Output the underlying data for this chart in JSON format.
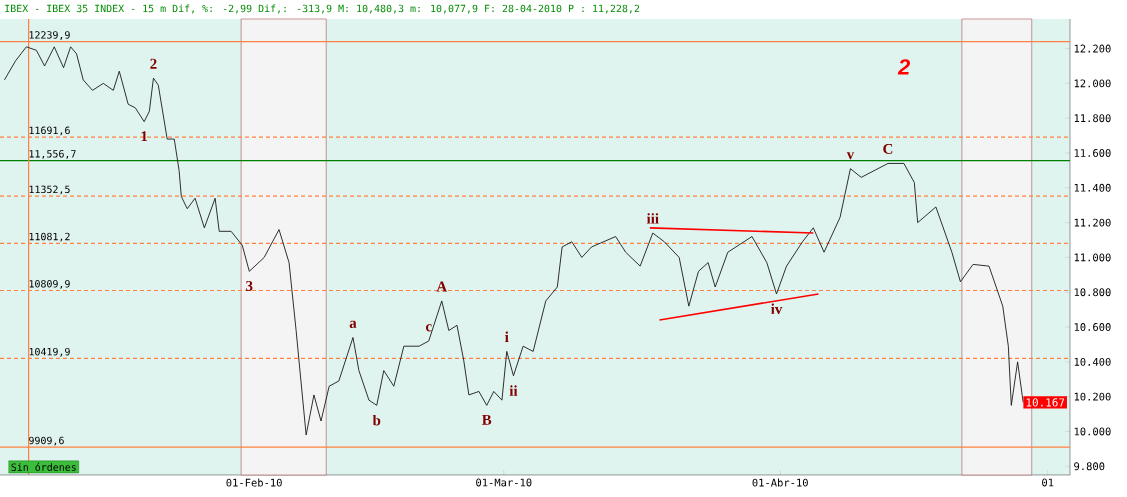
{
  "chart_data": {
    "type": "line",
    "title": "IBEX - IBEX 35 INDEX -  15 m Dif, %: -2,99 Dif,: -313,9 M: 10,480,3 m: 10,077,9 F: 28-04-2010 P : 11,228,2",
    "xlim": [
      "2010-01-03T12:00",
      "2010-05-03T12:00"
    ],
    "xticks": [
      {
        "value": "2010-02-01",
        "label": "01-Feb-10"
      },
      {
        "value": "2010-03-01",
        "label": "01-Mar-10"
      },
      {
        "value": "2010-04-01",
        "label": "01-Abr-10"
      },
      {
        "value": "2010-05-01",
        "label": "01"
      }
    ],
    "ylim": [
      9750,
      12370
    ],
    "yticks": [
      {
        "value": 9800,
        "label": "9.800"
      },
      {
        "value": 10000,
        "label": "10.000"
      },
      {
        "value": 10200,
        "label": "10.200"
      },
      {
        "value": 10400,
        "label": "10.400"
      },
      {
        "value": 10600,
        "label": "10.600"
      },
      {
        "value": 10800,
        "label": "10.800"
      },
      {
        "value": 11000,
        "label": "11.000"
      },
      {
        "value": 11200,
        "label": "11.200"
      },
      {
        "value": 11400,
        "label": "11.400"
      },
      {
        "value": 11600,
        "label": "11.600"
      },
      {
        "value": 11800,
        "label": "11.800"
      },
      {
        "value": 12000,
        "label": "12.000"
      },
      {
        "value": 12200,
        "label": "12.200"
      }
    ],
    "series": [
      {
        "color": "#1a1a1a",
        "x": [
          "2010-01-04T00:00",
          "2010-01-05T06:00",
          "2010-01-06T11:00",
          "2010-01-07T14:00",
          "2010-01-08T12:00",
          "2010-01-09T14:00",
          "2010-01-10T15:00",
          "2010-01-11T10:00",
          "2010-01-12T02:00",
          "2010-01-12T20:00",
          "2010-01-13T21:00",
          "2010-01-15T02:00",
          "2010-01-16T05:00",
          "2010-01-16T21:00",
          "2010-01-17T21:00",
          "2010-01-18T16:00",
          "2010-01-19T16:00",
          "2010-01-20T06:00",
          "2010-01-20T17:00",
          "2010-01-21T06:00",
          "2010-01-22T06:00",
          "2010-01-23T01:00",
          "2010-01-23T14:00",
          "2010-01-23T20:00",
          "2010-01-24T12:00",
          "2010-01-25T09:00",
          "2010-01-26T10:00",
          "2010-01-27T15:00",
          "2010-01-28T02:00",
          "2010-01-29T10:00",
          "2010-01-30T16:00",
          "2010-01-31T11:00",
          "2010-02-02T03:00",
          "2010-02-03T19:00",
          "2010-02-04T22:00",
          "2010-02-05T17:00",
          "2010-02-06T06:00",
          "2010-02-06T20:00",
          "2010-02-07T17:00",
          "2010-02-08T12:00",
          "2010-02-09T10:00",
          "2010-02-10T12:00",
          "2010-02-12T02:00",
          "2010-02-12T18:00",
          "2010-02-13T21:00",
          "2010-02-14T18:00",
          "2010-02-15T13:00",
          "2010-02-16T16:00",
          "2010-02-17T19:00",
          "2010-02-19T12:00",
          "2010-02-20T14:00",
          "2010-02-22T01:00",
          "2010-02-22T20:00",
          "2010-02-23T18:00",
          "2010-02-24T12:00",
          "2010-02-25T02:00",
          "2010-02-26T05:00",
          "2010-02-27T02:00",
          "2010-02-27T21:00",
          "2010-02-28T19:00",
          "2010-03-01T08:00",
          "2010-03-02T02:00",
          "2010-03-03T04:00",
          "2010-03-04T07:00",
          "2010-03-05T17:00",
          "2010-03-07T00:00",
          "2010-03-07T13:00",
          "2010-03-08T15:00",
          "2010-03-09T18:00",
          "2010-03-10T20:00",
          "2010-03-13T13:00",
          "2010-03-14T16:00",
          "2010-03-16T07:00",
          "2010-03-17T17:00",
          "2010-03-19T00:00",
          "2010-03-20T16:00",
          "2010-03-21T18:00",
          "2010-03-22T20:00",
          "2010-03-23T22:00",
          "2010-03-24T17:00",
          "2010-03-26T03:00",
          "2010-03-28T20:00",
          "2010-03-30T12:00",
          "2010-03-31T14:00",
          "2010-04-01T17:00",
          "2010-04-03T12:00",
          "2010-04-04T17:00",
          "2010-04-05T22:00",
          "2010-04-07T17:00",
          "2010-04-08T21:00",
          "2010-04-10T02:00",
          "2010-04-13T02:00",
          "2010-04-14T21:00",
          "2010-04-16T01:00",
          "2010-04-16T10:00",
          "2010-04-18T11:00",
          "2010-04-20T06:00",
          "2010-04-21T05:00",
          "2010-04-22T15:00",
          "2010-04-24T10:00",
          "2010-04-25T23:00",
          "2010-04-26T14:00",
          "2010-04-26T22:00",
          "2010-04-27T15:00",
          "2010-04-28T06:00"
        ],
        "values": [
          12020,
          12130,
          12210,
          12190,
          12100,
          12210,
          12090,
          12210,
          12170,
          12020,
          11960,
          12000,
          11960,
          12070,
          11880,
          11860,
          11780,
          11840,
          12030,
          11990,
          11680,
          11680,
          11500,
          11350,
          11280,
          11340,
          11170,
          11340,
          11150,
          11150,
          11070,
          10920,
          11000,
          11160,
          10970,
          10580,
          10290,
          9980,
          10210,
          10060,
          10260,
          10290,
          10540,
          10350,
          10180,
          10150,
          10350,
          10260,
          10490,
          10490,
          10520,
          10750,
          10580,
          10610,
          10410,
          10210,
          10230,
          10150,
          10230,
          10180,
          10460,
          10320,
          10490,
          10460,
          10750,
          10830,
          11060,
          11090,
          11000,
          11060,
          11120,
          11030,
          10950,
          11140,
          11090,
          11000,
          10720,
          10920,
          10970,
          10830,
          11030,
          11120,
          10970,
          10790,
          10950,
          11090,
          11170,
          11030,
          11230,
          11510,
          11460,
          11540,
          11540,
          11430,
          11200,
          11290,
          11030,
          10860,
          10960,
          10950,
          10720,
          10490,
          10150,
          10400,
          10167
        ]
      },
      {
        "color": "#ff0000",
        "x": [
          "2010-03-17T09:00",
          "2010-04-04T17:00"
        ],
        "values": [
          11170,
          11140
        ]
      },
      {
        "color": "#ff0000",
        "x": [
          "2010-03-18T11:00",
          "2010-04-05T07:00"
        ],
        "values": [
          10640,
          10790
        ]
      }
    ],
    "ref_lines": [
      {
        "axis": "y",
        "value": 12239.9,
        "label": "12239,9",
        "color": "#ff8040",
        "line_style": "solid"
      },
      {
        "axis": "y",
        "value": 11691.6,
        "label": "11691,6",
        "color": "#ff8040",
        "line_style": "dashed"
      },
      {
        "axis": "y",
        "value": 11556.7,
        "label": "11,556,7",
        "color": "#008000",
        "line_style": "solid"
      },
      {
        "axis": "y",
        "value": 11352.5,
        "label": "11352,5",
        "color": "#ff8040",
        "line_style": "dashed"
      },
      {
        "axis": "y",
        "value": 11081.2,
        "label": "11081,2",
        "color": "#ff8040",
        "line_style": "dashed"
      },
      {
        "axis": "y",
        "value": 10809.9,
        "label": "10809,9",
        "color": "#ff8040",
        "line_style": "dashed"
      },
      {
        "axis": "y",
        "value": 10419.9,
        "label": "10419,9",
        "color": "#ff8040",
        "line_style": "dashed"
      },
      {
        "axis": "y",
        "value": 9909.6,
        "label": "9909,6",
        "color": "#ff8040",
        "line_style": "solid"
      },
      {
        "axis": "x",
        "value": "2010-01-06T17:00",
        "color": "#ff8040",
        "line_style": "solid"
      }
    ],
    "bands": [
      {
        "axis": "x",
        "from": "2010-01-30T13:00",
        "to": "2010-02-09T02:00",
        "color": "#800000"
      },
      {
        "axis": "x",
        "from": "2010-04-21T09:00",
        "to": "2010-04-29T05:00",
        "color": "#800000"
      }
    ],
    "annotations": [
      {
        "text": "1",
        "x": "2010-01-19T16:00",
        "y": 11780
      },
      {
        "text": "2",
        "x": "2010-01-20T17:00",
        "y": 12030
      },
      {
        "text": "3",
        "x": "2010-01-31T11:00",
        "y": 10920
      },
      {
        "text": "a",
        "x": "2010-02-12T02:00",
        "y": 10540
      },
      {
        "text": "b",
        "x": "2010-02-14T18:00",
        "y": 10150
      },
      {
        "text": "c",
        "x": "2010-02-20T14:00",
        "y": 10520
      },
      {
        "text": "A",
        "x": "2010-02-22T01:00",
        "y": 10750
      },
      {
        "text": "B",
        "x": "2010-02-27T02:00",
        "y": 10150
      },
      {
        "text": "i",
        "x": "2010-03-01T08:00",
        "y": 10460
      },
      {
        "text": "ii",
        "x": "2010-03-02T02:00",
        "y": 10320
      },
      {
        "text": "iii",
        "x": "2010-03-17T17:00",
        "y": 11140
      },
      {
        "text": "iv",
        "x": "2010-03-31T14:00",
        "y": 10790
      },
      {
        "text": "v",
        "x": "2010-04-08T21:00",
        "y": 11510
      },
      {
        "text": "C",
        "x": "2010-04-13T02:00",
        "y": 11540
      },
      "2",
      {
        "text": "10.167",
        "x": "2010-04-28T06:00",
        "y": 10167
      },
      "Sin órdenes"
    ]
  }
}
